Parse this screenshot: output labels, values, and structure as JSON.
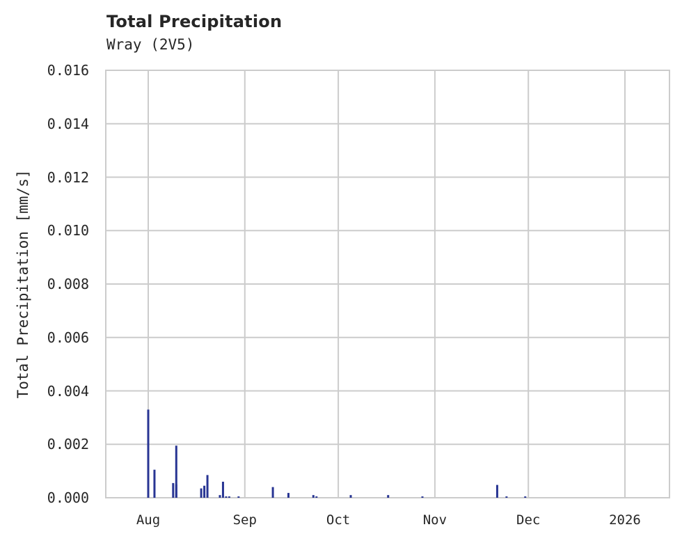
{
  "header": {
    "title": "Total Precipitation",
    "subtitle": "Wray (2V5)"
  },
  "axes": {
    "ylabel": "Total Precipitation [mm/s]",
    "yticks": [
      "0.000",
      "0.002",
      "0.004",
      "0.006",
      "0.008",
      "0.010",
      "0.012",
      "0.014",
      "0.016"
    ],
    "xticks": [
      "Aug",
      "Sep",
      "Oct",
      "Nov",
      "Dec",
      "2026"
    ]
  },
  "colors": {
    "bar": "#283593",
    "grid": "#cccccc",
    "text": "#262626"
  },
  "chart_data": {
    "type": "bar",
    "title": "Total Precipitation",
    "subtitle": "Wray (2V5)",
    "xlabel": "",
    "ylabel": "Total Precipitation [mm/s]",
    "ylim": [
      0,
      0.016
    ],
    "xlim": [
      "2025-07-18",
      "2026-01-15"
    ],
    "grid": true,
    "legend": null,
    "x_tick_labels": [
      "Aug",
      "Sep",
      "Oct",
      "Nov",
      "Dec",
      "2026"
    ],
    "y_tick_labels": [
      "0.000",
      "0.002",
      "0.004",
      "0.006",
      "0.008",
      "0.010",
      "0.012",
      "0.014",
      "0.016"
    ],
    "series": [
      {
        "name": "Total Precipitation",
        "points": [
          {
            "date": "2025-08-01",
            "value": 0.0033
          },
          {
            "date": "2025-08-01",
            "value": 5e-05
          },
          {
            "date": "2025-08-03",
            "value": 0.00105
          },
          {
            "date": "2025-08-09",
            "value": 0.00055
          },
          {
            "date": "2025-08-10",
            "value": 0.00195
          },
          {
            "date": "2025-08-10",
            "value": 0.0005
          },
          {
            "date": "2025-08-18",
            "value": 0.00035
          },
          {
            "date": "2025-08-19",
            "value": 0.00045
          },
          {
            "date": "2025-08-20",
            "value": 0.00085
          },
          {
            "date": "2025-08-24",
            "value": 0.0001
          },
          {
            "date": "2025-08-25",
            "value": 0.0006
          },
          {
            "date": "2025-08-26",
            "value": 5e-05
          },
          {
            "date": "2025-08-27",
            "value": 5e-05
          },
          {
            "date": "2025-08-30",
            "value": 5e-05
          },
          {
            "date": "2025-09-10",
            "value": 0.0004
          },
          {
            "date": "2025-09-15",
            "value": 0.00018
          },
          {
            "date": "2025-09-23",
            "value": 0.0001
          },
          {
            "date": "2025-09-24",
            "value": 5e-05
          },
          {
            "date": "2025-10-05",
            "value": 0.0001
          },
          {
            "date": "2025-10-17",
            "value": 0.0001
          },
          {
            "date": "2025-10-28",
            "value": 5e-05
          },
          {
            "date": "2025-11-21",
            "value": 0.00048
          },
          {
            "date": "2025-11-24",
            "value": 5e-05
          },
          {
            "date": "2025-11-30",
            "value": 5e-05
          }
        ]
      }
    ]
  }
}
